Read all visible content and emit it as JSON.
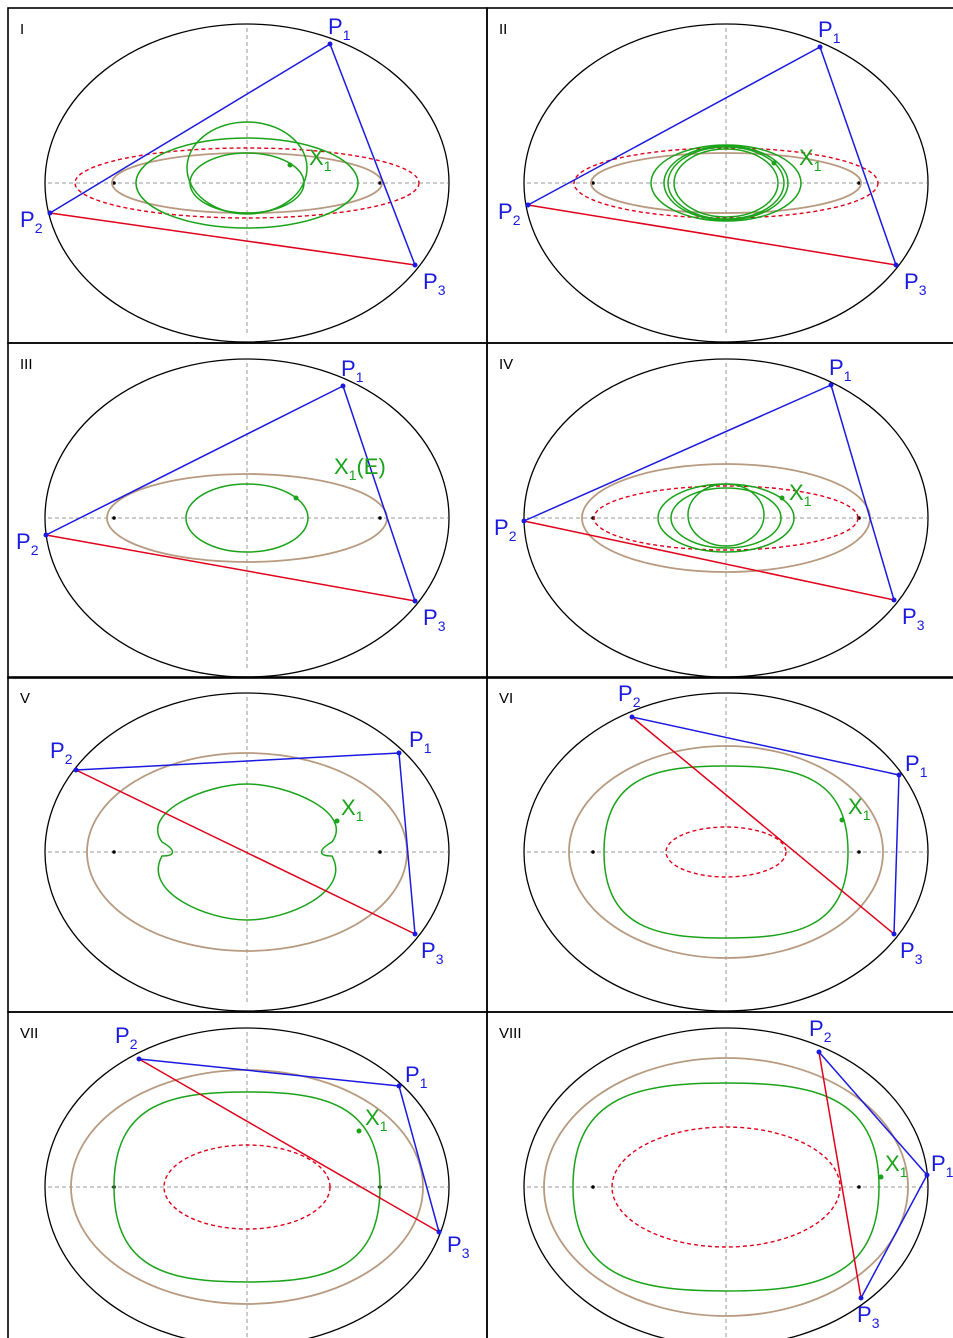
{
  "panels": [
    {
      "id": "I",
      "x1_label": "X",
      "x1_sub": "1",
      "x1_suffix": "",
      "has_dashed": true
    },
    {
      "id": "II",
      "x1_label": "X",
      "x1_sub": "1",
      "x1_suffix": "",
      "has_dashed": true
    },
    {
      "id": "III",
      "x1_label": "X",
      "x1_sub": "1",
      "x1_suffix": "(E)",
      "has_dashed": false
    },
    {
      "id": "IV",
      "x1_label": "X",
      "x1_sub": "1",
      "x1_suffix": "",
      "has_dashed": true
    },
    {
      "id": "V",
      "x1_label": "X",
      "x1_sub": "1",
      "x1_suffix": "",
      "has_dashed": false
    },
    {
      "id": "VI",
      "x1_label": "X",
      "x1_sub": "1",
      "x1_suffix": "",
      "has_dashed": true
    },
    {
      "id": "VII",
      "x1_label": "X",
      "x1_sub": "1",
      "x1_suffix": "",
      "has_dashed": true
    },
    {
      "id": "VIII",
      "x1_label": "X",
      "x1_sub": "1",
      "x1_suffix": "",
      "has_dashed": true
    }
  ],
  "vertices": {
    "p1": "P",
    "p2": "P",
    "p3": "P",
    "s1": "1",
    "s2": "2",
    "s3": "3"
  },
  "colors": {
    "outer_ellipse": "#000000",
    "caustic": "#b89a80",
    "locus": "#1aa31a",
    "dashed_ellipse": "#e0001a",
    "triangle_edges": "#1a1ae0",
    "edge_p2p3": "#e0001a",
    "axes": "#9a9a9a"
  }
}
